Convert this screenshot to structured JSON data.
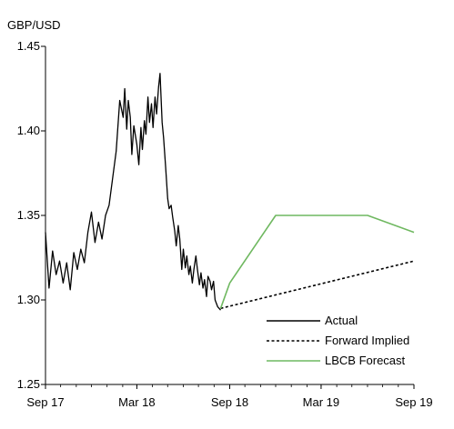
{
  "chart_data": {
    "type": "line",
    "ylabel": "GBP/USD",
    "ylim": [
      1.25,
      1.45
    ],
    "yticks": [
      "1.25",
      "1.30",
      "1.35",
      "1.40",
      "1.45"
    ],
    "xlim": [
      "2017-09-01",
      "2019-09-01"
    ],
    "xticks": [
      {
        "label": "Sep 17",
        "date": "2017-09-01"
      },
      {
        "label": "Mar 18",
        "date": "2018-03-01"
      },
      {
        "label": "Sep 18",
        "date": "2018-09-01"
      },
      {
        "label": "Mar 19",
        "date": "2019-03-01"
      },
      {
        "label": "Sep 19",
        "date": "2019-09-01"
      }
    ],
    "legend_position": "bottom-right",
    "series": [
      {
        "name": "Actual",
        "color": "#000000",
        "style": "solid",
        "points": [
          [
            "2017-09-01",
            1.34
          ],
          [
            "2017-09-08",
            1.307
          ],
          [
            "2017-09-15",
            1.329
          ],
          [
            "2017-09-22",
            1.315
          ],
          [
            "2017-09-29",
            1.323
          ],
          [
            "2017-10-06",
            1.31
          ],
          [
            "2017-10-13",
            1.322
          ],
          [
            "2017-10-20",
            1.306
          ],
          [
            "2017-10-27",
            1.328
          ],
          [
            "2017-11-03",
            1.318
          ],
          [
            "2017-11-10",
            1.33
          ],
          [
            "2017-11-17",
            1.322
          ],
          [
            "2017-11-24",
            1.34
          ],
          [
            "2017-12-01",
            1.352
          ],
          [
            "2017-12-08",
            1.334
          ],
          [
            "2017-12-15",
            1.346
          ],
          [
            "2017-12-22",
            1.336
          ],
          [
            "2017-12-29",
            1.35
          ],
          [
            "2018-01-05",
            1.356
          ],
          [
            "2018-01-12",
            1.372
          ],
          [
            "2018-01-19",
            1.388
          ],
          [
            "2018-01-26",
            1.418
          ],
          [
            "2018-02-02",
            1.408
          ],
          [
            "2018-02-05",
            1.425
          ],
          [
            "2018-02-09",
            1.401
          ],
          [
            "2018-02-12",
            1.418
          ],
          [
            "2018-02-16",
            1.408
          ],
          [
            "2018-02-19",
            1.386
          ],
          [
            "2018-02-23",
            1.403
          ],
          [
            "2018-03-01",
            1.392
          ],
          [
            "2018-03-05",
            1.38
          ],
          [
            "2018-03-09",
            1.402
          ],
          [
            "2018-03-12",
            1.389
          ],
          [
            "2018-03-16",
            1.406
          ],
          [
            "2018-03-19",
            1.398
          ],
          [
            "2018-03-23",
            1.42
          ],
          [
            "2018-03-26",
            1.405
          ],
          [
            "2018-03-30",
            1.416
          ],
          [
            "2018-04-02",
            1.402
          ],
          [
            "2018-04-06",
            1.42
          ],
          [
            "2018-04-09",
            1.41
          ],
          [
            "2018-04-13",
            1.426
          ],
          [
            "2018-04-16",
            1.434
          ],
          [
            "2018-04-20",
            1.405
          ],
          [
            "2018-04-23",
            1.396
          ],
          [
            "2018-04-27",
            1.379
          ],
          [
            "2018-05-01",
            1.36
          ],
          [
            "2018-05-04",
            1.354
          ],
          [
            "2018-05-08",
            1.356
          ],
          [
            "2018-05-11",
            1.349
          ],
          [
            "2018-05-15",
            1.341
          ],
          [
            "2018-05-18",
            1.332
          ],
          [
            "2018-05-22",
            1.344
          ],
          [
            "2018-05-25",
            1.336
          ],
          [
            "2018-05-29",
            1.318
          ],
          [
            "2018-06-01",
            1.33
          ],
          [
            "2018-06-05",
            1.319
          ],
          [
            "2018-06-08",
            1.326
          ],
          [
            "2018-06-12",
            1.315
          ],
          [
            "2018-06-15",
            1.32
          ],
          [
            "2018-06-19",
            1.31
          ],
          [
            "2018-06-22",
            1.318
          ],
          [
            "2018-06-26",
            1.326
          ],
          [
            "2018-06-29",
            1.318
          ],
          [
            "2018-07-03",
            1.309
          ],
          [
            "2018-07-06",
            1.316
          ],
          [
            "2018-07-10",
            1.307
          ],
          [
            "2018-07-13",
            1.312
          ],
          [
            "2018-07-17",
            1.302
          ],
          [
            "2018-07-20",
            1.314
          ],
          [
            "2018-07-24",
            1.311
          ],
          [
            "2018-07-27",
            1.306
          ],
          [
            "2018-07-31",
            1.311
          ],
          [
            "2018-08-03",
            1.3
          ],
          [
            "2018-08-08",
            1.296
          ],
          [
            "2018-08-14",
            1.294
          ]
        ]
      },
      {
        "name": "Forward Implied",
        "color": "#000000",
        "style": "dashed",
        "points": [
          [
            "2018-08-14",
            1.295
          ],
          [
            "2019-09-01",
            1.323
          ]
        ]
      },
      {
        "name": "LBCB Forecast",
        "color": "#6fb860",
        "style": "solid",
        "points": [
          [
            "2018-08-14",
            1.295
          ],
          [
            "2018-09-01",
            1.31
          ],
          [
            "2018-12-01",
            1.35
          ],
          [
            "2019-06-01",
            1.35
          ],
          [
            "2019-09-01",
            1.34
          ]
        ]
      }
    ]
  }
}
